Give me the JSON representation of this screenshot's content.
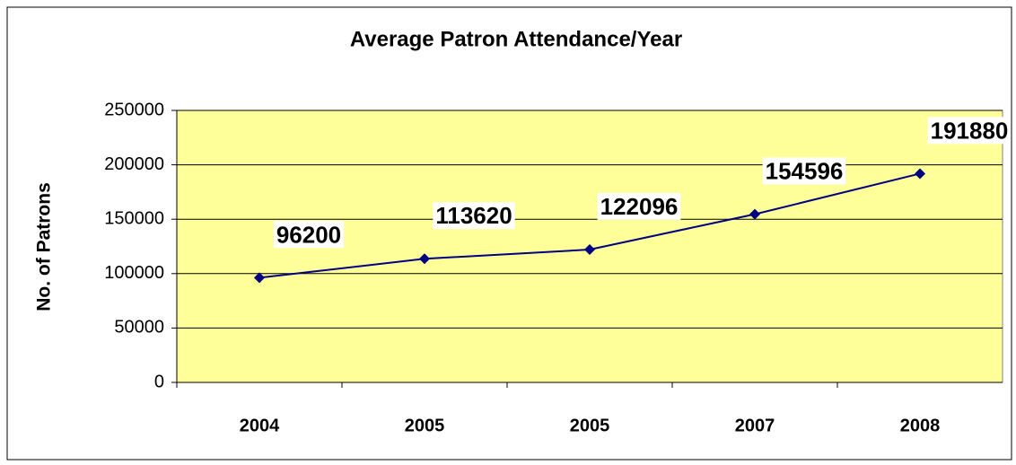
{
  "chart_data": {
    "type": "line",
    "title": "Average Patron Attendance/Year",
    "y_label": "No. of Patrons",
    "categories": [
      "2004",
      "2005",
      "2005",
      "2007",
      "2008"
    ],
    "values": [
      96200,
      113620,
      122096,
      154596,
      191880
    ],
    "color": "#000080",
    "plot_background": "#ffff99",
    "ylim": [
      0,
      250000
    ],
    "yticks": [
      0,
      50000,
      100000,
      150000,
      200000,
      250000
    ],
    "grid": true,
    "data_labels": true
  }
}
